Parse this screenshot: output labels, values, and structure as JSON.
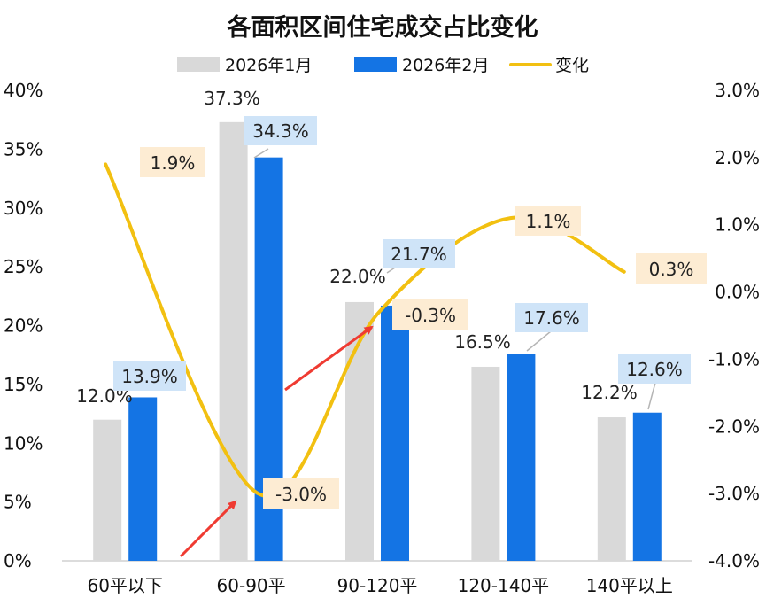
{
  "chart_data": {
    "type": "bar",
    "title": "各面积区间住宅成交占比变化",
    "categories": [
      "60平以下",
      "60-90平",
      "90-120平",
      "120-140平",
      "140平以上"
    ],
    "series": [
      {
        "name": "2026年1月",
        "type": "bar",
        "axis": "left",
        "color": "#d9d9d9",
        "values": [
          12.0,
          37.3,
          22.0,
          16.5,
          12.2
        ],
        "labels": [
          "12.0%",
          "37.3%",
          "22.0%",
          "16.5%",
          "12.2%"
        ]
      },
      {
        "name": "2026年2月",
        "type": "bar",
        "axis": "left",
        "color": "#1474e4",
        "values": [
          13.9,
          34.3,
          21.7,
          17.6,
          12.6
        ],
        "labels": [
          "13.9%",
          "34.3%",
          "21.7%",
          "17.6%",
          "12.6%"
        ]
      },
      {
        "name": "变化",
        "type": "line",
        "axis": "right",
        "smooth": true,
        "color": "#f2c011",
        "values": [
          1.9,
          -3.0,
          -0.3,
          1.1,
          0.3
        ],
        "labels": [
          "1.9%",
          "-3.0%",
          "-0.3%",
          "1.1%",
          "0.3%"
        ]
      }
    ],
    "y_left": {
      "min": 0,
      "max": 40,
      "ticks": [
        "0%",
        "5%",
        "10%",
        "15%",
        "20%",
        "25%",
        "30%",
        "35%",
        "40%"
      ]
    },
    "y_right": {
      "min": -4.0,
      "max": 3.0,
      "ticks": [
        "-4.0%",
        "-3.0%",
        "-2.0%",
        "-1.0%",
        "0.0%",
        "1.0%",
        "2.0%",
        "3.0%"
      ]
    },
    "legend_position": "top",
    "grid": false,
    "annotations": [
      "red arrow pointing to -3.0% change",
      "red arrow pointing to -0.3% change"
    ]
  },
  "colors": {
    "arrow": "#ef3b32",
    "label_blue_bg": "#cfe4f8",
    "label_orange_bg": "#fdecd3"
  }
}
